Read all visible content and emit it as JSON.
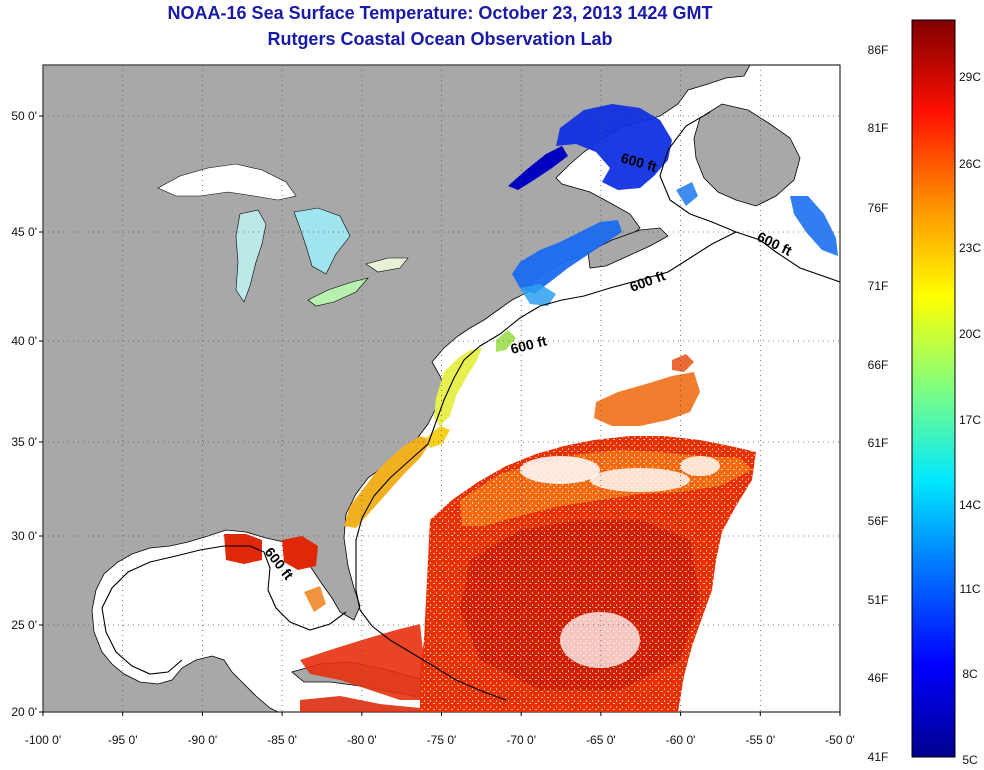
{
  "header": {
    "title": "NOAA-16 Sea Surface Temperature:  October 23, 2013 1424 GMT",
    "subtitle": "Rutgers Coastal Ocean Observation Lab"
  },
  "map": {
    "lon_range": [
      -100,
      -50
    ],
    "lat_range": [
      20,
      52
    ],
    "lon_ticks": [
      "-100 0'",
      "-95 0'",
      "-90 0'",
      "-85 0'",
      "-80 0'",
      "-75 0'",
      "-70 0'",
      "-65 0'",
      "-60 0'",
      "-55 0'",
      "-50 0'"
    ],
    "lat_ticks": [
      {
        "lat": 50,
        "label": "50 0'"
      },
      {
        "lat": 45,
        "label": "45 0'"
      },
      {
        "lat": 40,
        "label": "40 0'"
      },
      {
        "lat": 35,
        "label": "35 0'"
      },
      {
        "lat": 30,
        "label": "30 0'"
      },
      {
        "lat": 25,
        "label": "25 0'"
      },
      {
        "lat": 20,
        "label": "20 0'"
      }
    ],
    "grid": "dotted",
    "land_color": "#a8a8a8",
    "isobath_labels": [
      "600 ft",
      "600 ft",
      "600 ft",
      "600 ft",
      "600 ft"
    ]
  },
  "colorbar": {
    "fahrenheit_labels": [
      "86F",
      "81F",
      "76F",
      "71F",
      "66F",
      "61F",
      "56F",
      "51F",
      "46F",
      "41F"
    ],
    "celsius_labels": [
      "29C",
      "26C",
      "23C",
      "20C",
      "17C",
      "14C",
      "11C",
      "8C",
      "5C"
    ],
    "colors": [
      "#00008f",
      "#0000ff",
      "#007fff",
      "#00ffff",
      "#7fff7f",
      "#ffff00",
      "#ff7f00",
      "#ff0000",
      "#7f0000"
    ]
  }
}
